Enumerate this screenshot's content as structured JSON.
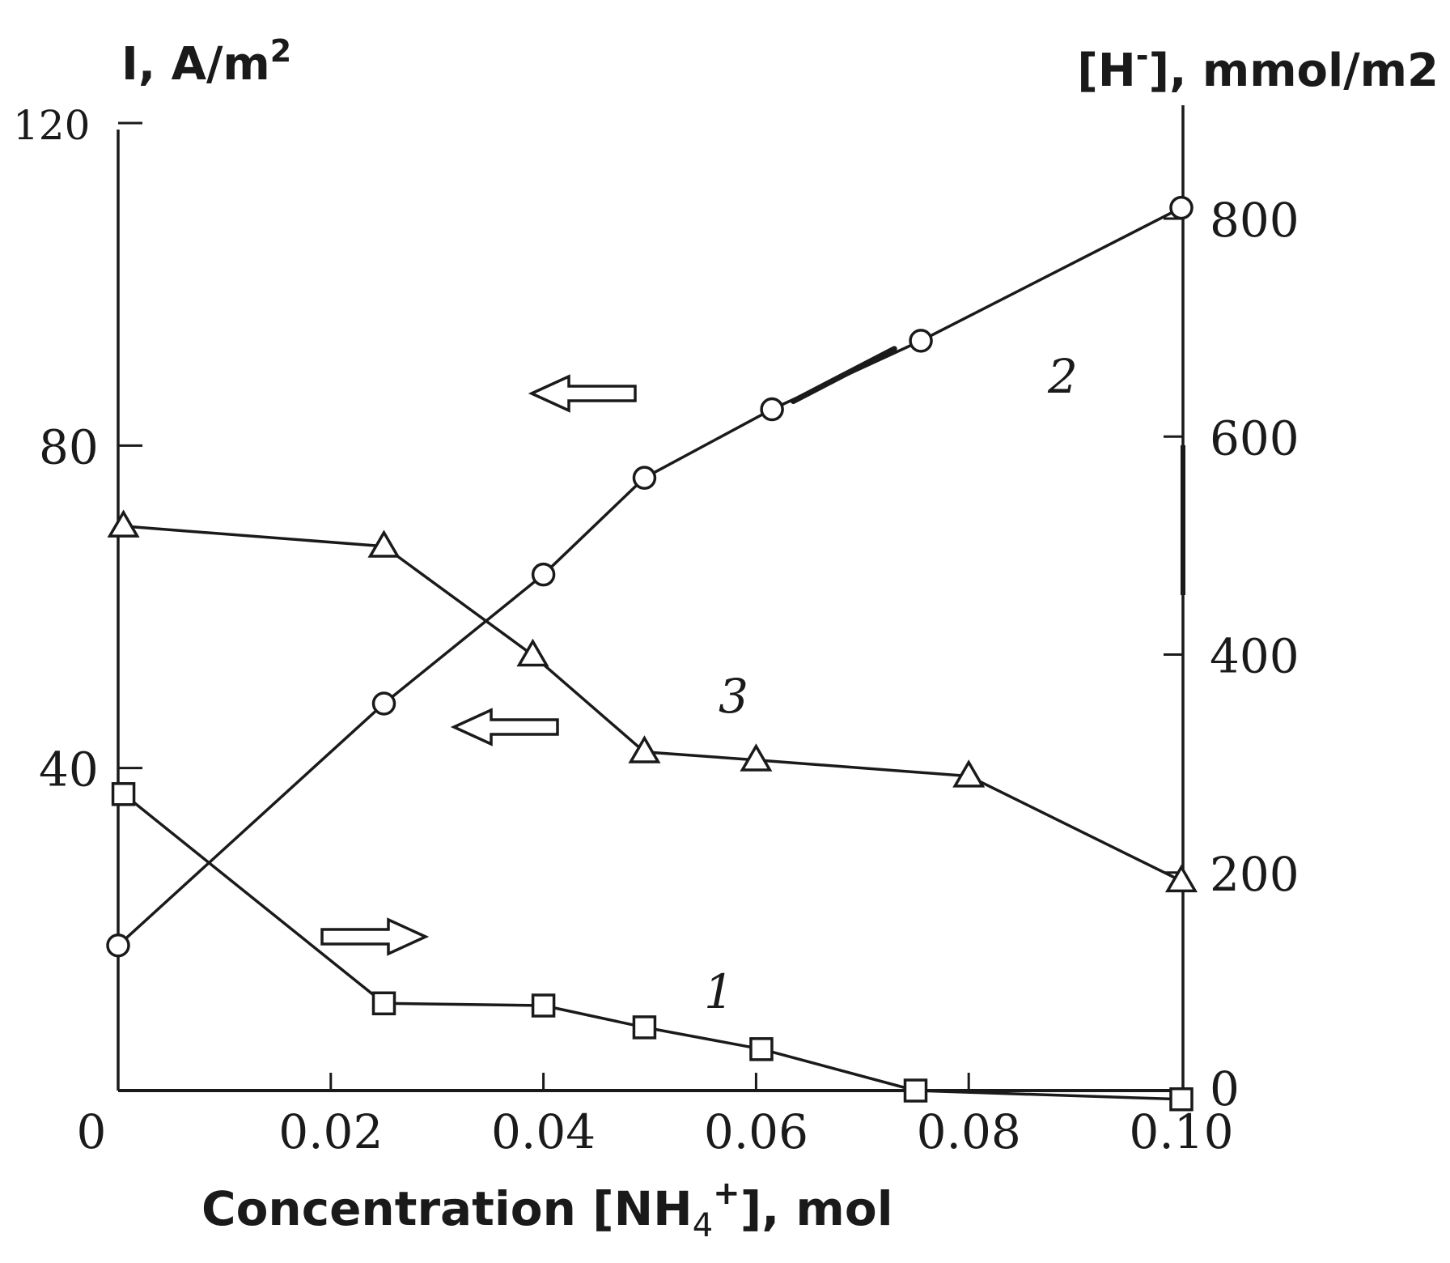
{
  "chart_data": {
    "type": "line",
    "title": "",
    "xlabel": "Concentration [NH4+], mol",
    "xlabel_parts": {
      "main": "Concentration [NH",
      "sub": "4",
      "sup": "+",
      "tail": "], mol"
    },
    "ylabel_left": "I, A/m2",
    "ylabel_left_parts": {
      "main": "I, A/m",
      "sup": "2"
    },
    "ylabel_right": "[H-], mmol/m2",
    "ylabel_right_parts": {
      "pre": "[H",
      "sup": "-",
      "tail": "], mmol/m2"
    },
    "xlim": [
      0,
      0.1
    ],
    "ylim_left": [
      0,
      120
    ],
    "ylim_right": [
      0,
      800
    ],
    "x_ticks": [
      {
        "value": 0,
        "label": "0"
      },
      {
        "value": 0.02,
        "label": "0.02"
      },
      {
        "value": 0.04,
        "label": "0.04"
      },
      {
        "value": 0.06,
        "label": "0.06"
      },
      {
        "value": 0.08,
        "label": "0.08"
      },
      {
        "value": 0.1,
        "label": "0.10"
      }
    ],
    "y_left_ticks": [
      {
        "value": 40,
        "label": "40"
      },
      {
        "value": 80,
        "label": "80"
      },
      {
        "value": 120,
        "label": "120"
      }
    ],
    "y_right_ticks": [
      {
        "value": 0,
        "label": "0"
      },
      {
        "value": 200,
        "label": "200"
      },
      {
        "value": 400,
        "label": "400"
      },
      {
        "value": 600,
        "label": "600"
      },
      {
        "value": 800,
        "label": "800"
      }
    ],
    "grid": false,
    "series": [
      {
        "name": "1",
        "marker": "square",
        "axis": "right",
        "x": [
          0.0005,
          0.025,
          0.04,
          0.0495,
          0.0605,
          0.075,
          0.1
        ],
        "y": [
          272,
          80,
          78,
          58,
          38,
          0,
          -8
        ]
      },
      {
        "name": "2",
        "marker": "circle",
        "axis": "left",
        "x": [
          0.0,
          0.025,
          0.04,
          0.0495,
          0.0615,
          0.0755,
          0.1
        ],
        "y": [
          18,
          48,
          64,
          76,
          84.5,
          93,
          109.5
        ]
      },
      {
        "name": "3",
        "marker": "triangle",
        "axis": "left",
        "x": [
          0.0005,
          0.025,
          0.039,
          0.0495,
          0.06,
          0.08,
          0.1
        ],
        "y": [
          70,
          67.5,
          54,
          42,
          41,
          39,
          26
        ]
      }
    ],
    "annotations": [
      {
        "type": "arrow",
        "direction": "left",
        "x": 0.043,
        "y": 87,
        "target": "2"
      },
      {
        "type": "arrow",
        "direction": "left",
        "x": 0.0355,
        "y": 46,
        "target": "3"
      },
      {
        "type": "arrow",
        "direction": "right",
        "x": 0.0265,
        "y": 19,
        "target": "1"
      }
    ],
    "curve_labels": [
      {
        "text": "1",
        "x": 0.056,
        "y": 12
      },
      {
        "text": "2",
        "x": 0.0875,
        "y": 88
      },
      {
        "text": "3",
        "x": 0.056,
        "y": 48.5
      }
    ]
  }
}
